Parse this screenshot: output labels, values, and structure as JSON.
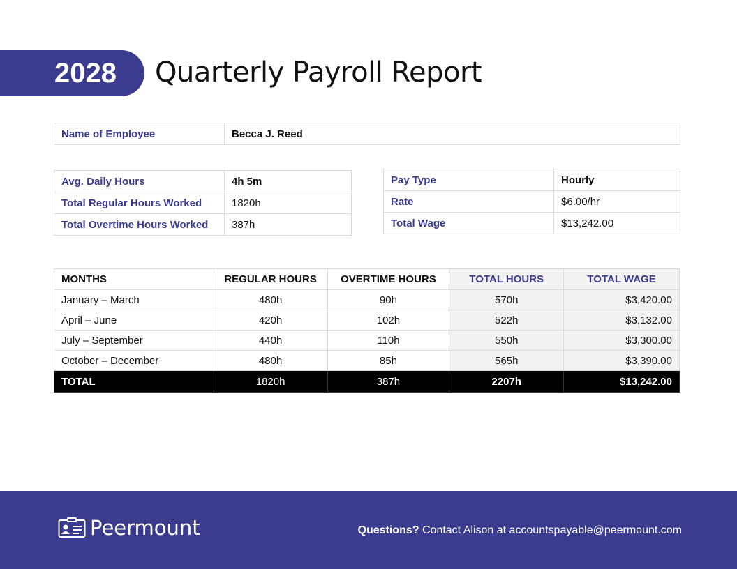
{
  "header": {
    "year": "2028",
    "title": "Quarterly Payroll Report"
  },
  "employee": {
    "label": "Name of Employee",
    "value": "Becca J. Reed"
  },
  "hours": [
    {
      "label": "Avg. Daily Hours",
      "value": "4h 5m"
    },
    {
      "label": "Total Regular Hours Worked",
      "value": "1820h"
    },
    {
      "label": "Total Overtime Hours Worked",
      "value": "387h"
    }
  ],
  "pay": [
    {
      "label": "Pay Type",
      "value": "Hourly"
    },
    {
      "label": "Rate",
      "value": "$6.00/hr"
    },
    {
      "label": "Total Wage",
      "value": "$13,242.00"
    }
  ],
  "summary": {
    "headers": [
      "MONTHS",
      "REGULAR HOURS",
      "OVERTIME HOURS",
      "TOTAL HOURS",
      "TOTAL WAGE"
    ],
    "rows": [
      [
        "January – March",
        "480h",
        "90h",
        "570h",
        "$3,420.00"
      ],
      [
        "April – June",
        "420h",
        "102h",
        "522h",
        "$3,132.00"
      ],
      [
        "July – September",
        "440h",
        "110h",
        "550h",
        "$3,300.00"
      ],
      [
        "October – December",
        "480h",
        "85h",
        "565h",
        "$3,390.00"
      ]
    ],
    "total": [
      "TOTAL",
      "1820h",
      "387h",
      "2207h",
      "$13,242.00"
    ]
  },
  "footer": {
    "brand": "Peermount",
    "questions_label": "Questions?",
    "contact_text": "Contact Alison at accountspayable@peermount.com"
  }
}
